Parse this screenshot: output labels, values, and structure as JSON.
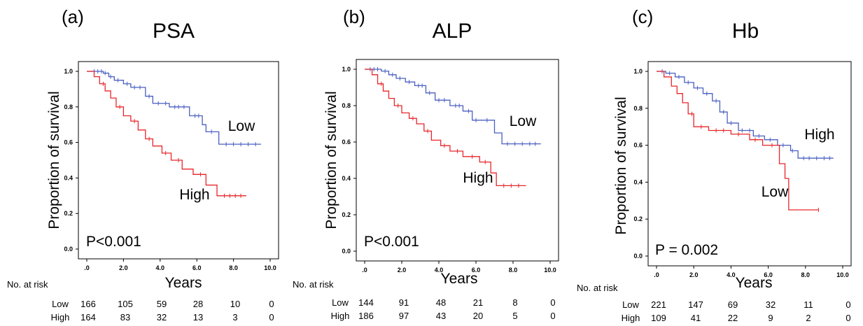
{
  "chart_data": [
    {
      "type": "line",
      "panel_letter": "(a)",
      "title": "PSA",
      "xlabel": "Years",
      "ylabel": "Proportion of survival",
      "xticks": [
        ".0",
        "2.0",
        "4.0",
        "6.0",
        "8.0",
        "10.0"
      ],
      "yticks": [
        "0.0",
        "0.2",
        "0.4",
        "0.6",
        "0.8",
        "1.0"
      ],
      "xlim": [
        0,
        10
      ],
      "ylim": [
        0,
        1
      ],
      "p_value": "P<0.001",
      "series": [
        {
          "name": "Low",
          "color": "#4a5fc1",
          "x": [
            0,
            0.9,
            1.2,
            1.5,
            2.0,
            2.4,
            3.2,
            3.6,
            4.5,
            5.6,
            6.3,
            6.5,
            7.2,
            9.5
          ],
          "y": [
            1.0,
            0.99,
            0.97,
            0.95,
            0.93,
            0.91,
            0.86,
            0.82,
            0.8,
            0.75,
            0.7,
            0.66,
            0.59,
            0.59
          ],
          "censor_x": [
            0.4,
            0.6,
            0.8,
            1.0,
            1.3,
            1.7,
            2.2,
            2.6,
            2.9,
            3.4,
            3.9,
            4.3,
            4.8,
            5.0,
            5.3,
            5.9,
            6.1,
            6.8,
            7.6,
            8.0,
            8.4,
            8.8,
            9.2
          ]
        },
        {
          "name": "High",
          "color": "#e8262a",
          "x": [
            0,
            0.4,
            0.7,
            1.0,
            1.3,
            1.6,
            2.0,
            2.4,
            2.8,
            3.2,
            3.6,
            4.1,
            4.6,
            5.2,
            5.8,
            6.5,
            7.1,
            8.7
          ],
          "y": [
            1.0,
            0.97,
            0.93,
            0.89,
            0.85,
            0.8,
            0.75,
            0.72,
            0.67,
            0.62,
            0.58,
            0.54,
            0.5,
            0.45,
            0.42,
            0.36,
            0.3,
            0.3
          ],
          "censor_x": [
            0.9,
            1.8,
            2.6,
            3.4,
            4.3,
            5.0,
            6.2,
            7.5,
            7.8,
            8.1,
            8.4
          ]
        }
      ],
      "curve_labels": [
        "Low",
        "High"
      ],
      "risk_table": {
        "title": "No. at risk",
        "rows": [
          {
            "label": "Low",
            "values": [
              "166",
              "105",
              "59",
              "28",
              "10",
              "0"
            ]
          },
          {
            "label": "High",
            "values": [
              "164",
              "83",
              "32",
              "13",
              "3",
              "0"
            ]
          }
        ]
      }
    },
    {
      "type": "line",
      "panel_letter": "(b)",
      "title": "ALP",
      "xlabel": "Years",
      "ylabel": "Proportion of survival",
      "xticks": [
        ".0",
        "2.0",
        "4.0",
        "6.0",
        "8.0",
        "10.0"
      ],
      "yticks": [
        "0.0",
        "0.2",
        "0.4",
        "0.6",
        "0.8",
        "1.0"
      ],
      "xlim": [
        0,
        10
      ],
      "ylim": [
        0,
        1
      ],
      "p_value": "P<0.001",
      "series": [
        {
          "name": "Low",
          "color": "#4a5fc1",
          "x": [
            0,
            0.9,
            1.3,
            1.7,
            2.2,
            2.7,
            3.3,
            3.8,
            4.6,
            5.3,
            5.8,
            6.3,
            7.0,
            7.4,
            9.5
          ],
          "y": [
            1.0,
            0.99,
            0.97,
            0.95,
            0.93,
            0.91,
            0.87,
            0.83,
            0.8,
            0.77,
            0.72,
            0.72,
            0.65,
            0.59,
            0.59
          ],
          "censor_x": [
            0.3,
            0.5,
            0.7,
            1.1,
            1.5,
            1.9,
            2.4,
            2.9,
            3.1,
            3.5,
            4.0,
            4.3,
            4.9,
            5.1,
            5.6,
            6.0,
            6.6,
            7.7,
            8.1,
            8.5,
            8.9,
            9.2
          ]
        },
        {
          "name": "High",
          "color": "#e8262a",
          "x": [
            0,
            0.4,
            0.7,
            1.0,
            1.3,
            1.6,
            2.0,
            2.4,
            2.8,
            3.2,
            3.6,
            4.1,
            4.6,
            5.3,
            6.2,
            6.8,
            7.1,
            8.7
          ],
          "y": [
            1.0,
            0.97,
            0.92,
            0.88,
            0.84,
            0.8,
            0.76,
            0.73,
            0.7,
            0.66,
            0.61,
            0.58,
            0.55,
            0.52,
            0.49,
            0.43,
            0.36,
            0.36
          ],
          "censor_x": [
            0.9,
            1.8,
            2.6,
            3.4,
            4.3,
            5.0,
            5.8,
            6.5,
            7.5,
            7.9,
            8.3
          ]
        }
      ],
      "curve_labels": [
        "Low",
        "High"
      ],
      "risk_table": {
        "title": "No. at risk",
        "rows": [
          {
            "label": "Low",
            "values": [
              "144",
              "91",
              "48",
              "21",
              "8",
              "0"
            ]
          },
          {
            "label": "High",
            "values": [
              "186",
              "97",
              "43",
              "20",
              "5",
              "0"
            ]
          }
        ]
      }
    },
    {
      "type": "line",
      "panel_letter": "(c)",
      "title": "Hb",
      "xlabel": "Years",
      "ylabel": "Proportion of survival",
      "xticks": [
        ".0",
        "2.0",
        "4.0",
        "6.0",
        "8.0",
        "10.0"
      ],
      "yticks": [
        "0.0",
        "0.2",
        "0.4",
        "0.6",
        "0.8",
        "1.0"
      ],
      "xlim": [
        0,
        10
      ],
      "ylim": [
        0,
        1
      ],
      "p_value": "P = 0.002",
      "series": [
        {
          "name": "High",
          "color": "#4a5fc1",
          "x": [
            0,
            0.5,
            1.0,
            1.5,
            2.0,
            2.5,
            3.0,
            3.4,
            3.8,
            4.4,
            5.2,
            5.8,
            6.5,
            7.2,
            7.6,
            9.5
          ],
          "y": [
            1.0,
            0.99,
            0.97,
            0.94,
            0.91,
            0.88,
            0.84,
            0.78,
            0.72,
            0.68,
            0.65,
            0.63,
            0.6,
            0.57,
            0.53,
            0.53
          ],
          "censor_x": [
            0.3,
            0.7,
            1.2,
            1.7,
            2.2,
            2.7,
            3.2,
            3.6,
            4.0,
            4.6,
            5.0,
            5.5,
            6.1,
            6.8,
            7.3,
            7.9,
            8.2,
            8.6,
            9.0,
            9.3
          ]
        },
        {
          "name": "Low",
          "color": "#e8262a",
          "x": [
            0,
            0.4,
            0.8,
            1.1,
            1.4,
            1.7,
            2.0,
            2.8,
            4.0,
            5.0,
            5.7,
            6.6,
            6.9,
            7.1,
            8.7
          ],
          "y": [
            1.0,
            0.97,
            0.92,
            0.88,
            0.83,
            0.77,
            0.7,
            0.68,
            0.66,
            0.63,
            0.6,
            0.5,
            0.42,
            0.25,
            0.25
          ],
          "censor_x": [
            1.9,
            2.4,
            3.2,
            3.6,
            4.4,
            5.3,
            6.2,
            8.7
          ]
        }
      ],
      "curve_labels": [
        "High",
        "Low"
      ],
      "risk_table": {
        "title": "No. at risk",
        "rows": [
          {
            "label": "Low",
            "values": [
              "221",
              "147",
              "69",
              "32",
              "11",
              "0"
            ]
          },
          {
            "label": "High",
            "values": [
              "109",
              "41",
              "22",
              "9",
              "2",
              "0"
            ]
          }
        ]
      }
    }
  ]
}
